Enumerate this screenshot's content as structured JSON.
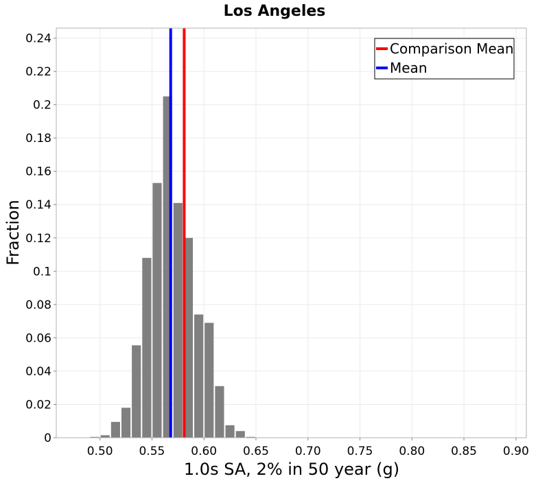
{
  "chart_data": {
    "type": "bar",
    "title": "Los Angeles",
    "xlabel": "1.0s SA, 2% in 50 year (g)",
    "ylabel": "Fraction",
    "xlim": [
      0.458,
      0.91
    ],
    "ylim": [
      0,
      0.246
    ],
    "grid": true,
    "legend_placement": "top-right",
    "x_ticks": [
      "0.50",
      "0.55",
      "0.60",
      "0.65",
      "0.70",
      "0.75",
      "0.80",
      "0.85",
      "0.90"
    ],
    "y_ticks": [
      "0",
      "0.02",
      "0.04",
      "0.06",
      "0.08",
      "0.1",
      "0.12",
      "0.14",
      "0.16",
      "0.18",
      "0.2",
      "0.22",
      "0.24"
    ],
    "bin_width": 0.01,
    "bins": [
      {
        "x": 0.495,
        "y": 0.0005
      },
      {
        "x": 0.505,
        "y": 0.0015
      },
      {
        "x": 0.515,
        "y": 0.0095
      },
      {
        "x": 0.525,
        "y": 0.018
      },
      {
        "x": 0.535,
        "y": 0.0555
      },
      {
        "x": 0.545,
        "y": 0.108
      },
      {
        "x": 0.555,
        "y": 0.153
      },
      {
        "x": 0.565,
        "y": 0.205
      },
      {
        "x": 0.575,
        "y": 0.141
      },
      {
        "x": 0.585,
        "y": 0.12
      },
      {
        "x": 0.595,
        "y": 0.074
      },
      {
        "x": 0.605,
        "y": 0.069
      },
      {
        "x": 0.615,
        "y": 0.031
      },
      {
        "x": 0.625,
        "y": 0.0075
      },
      {
        "x": 0.635,
        "y": 0.004
      },
      {
        "x": 0.645,
        "y": 0.0005
      }
    ],
    "bar_color": "#808080",
    "lines": [
      {
        "name": "Comparison Mean",
        "x": 0.581,
        "color": "#ff0000"
      },
      {
        "name": "Mean",
        "x": 0.568,
        "color": "#0000ff"
      }
    ]
  }
}
